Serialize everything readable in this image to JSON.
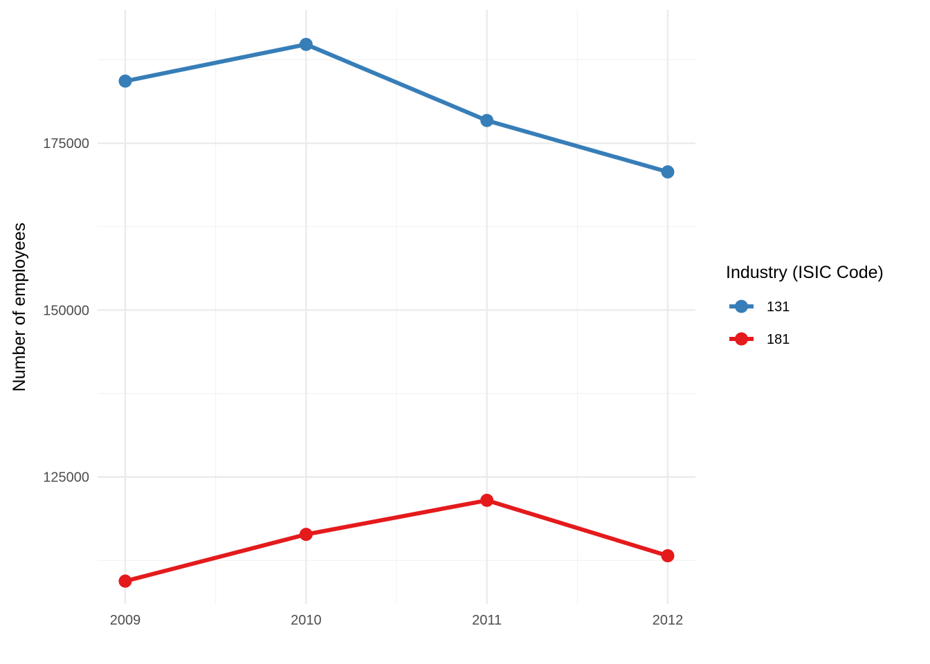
{
  "chart_data": {
    "type": "line",
    "title": "",
    "xlabel": "",
    "ylabel": "Number of employees",
    "x": [
      "2009",
      "2010",
      "2011",
      "2012"
    ],
    "ylim": [
      106000,
      195000
    ],
    "yticks": [
      "125000",
      "150000",
      "175000"
    ],
    "grid": true,
    "legend": {
      "title": "Industry (ISIC Code)",
      "position": "right"
    },
    "series": [
      {
        "name": "131",
        "color": "#377eb8",
        "values": [
          184300,
          189800,
          178400,
          170700
        ]
      },
      {
        "name": "181",
        "color": "#e41a1c",
        "values": [
          109400,
          116400,
          121500,
          113200
        ]
      }
    ]
  }
}
